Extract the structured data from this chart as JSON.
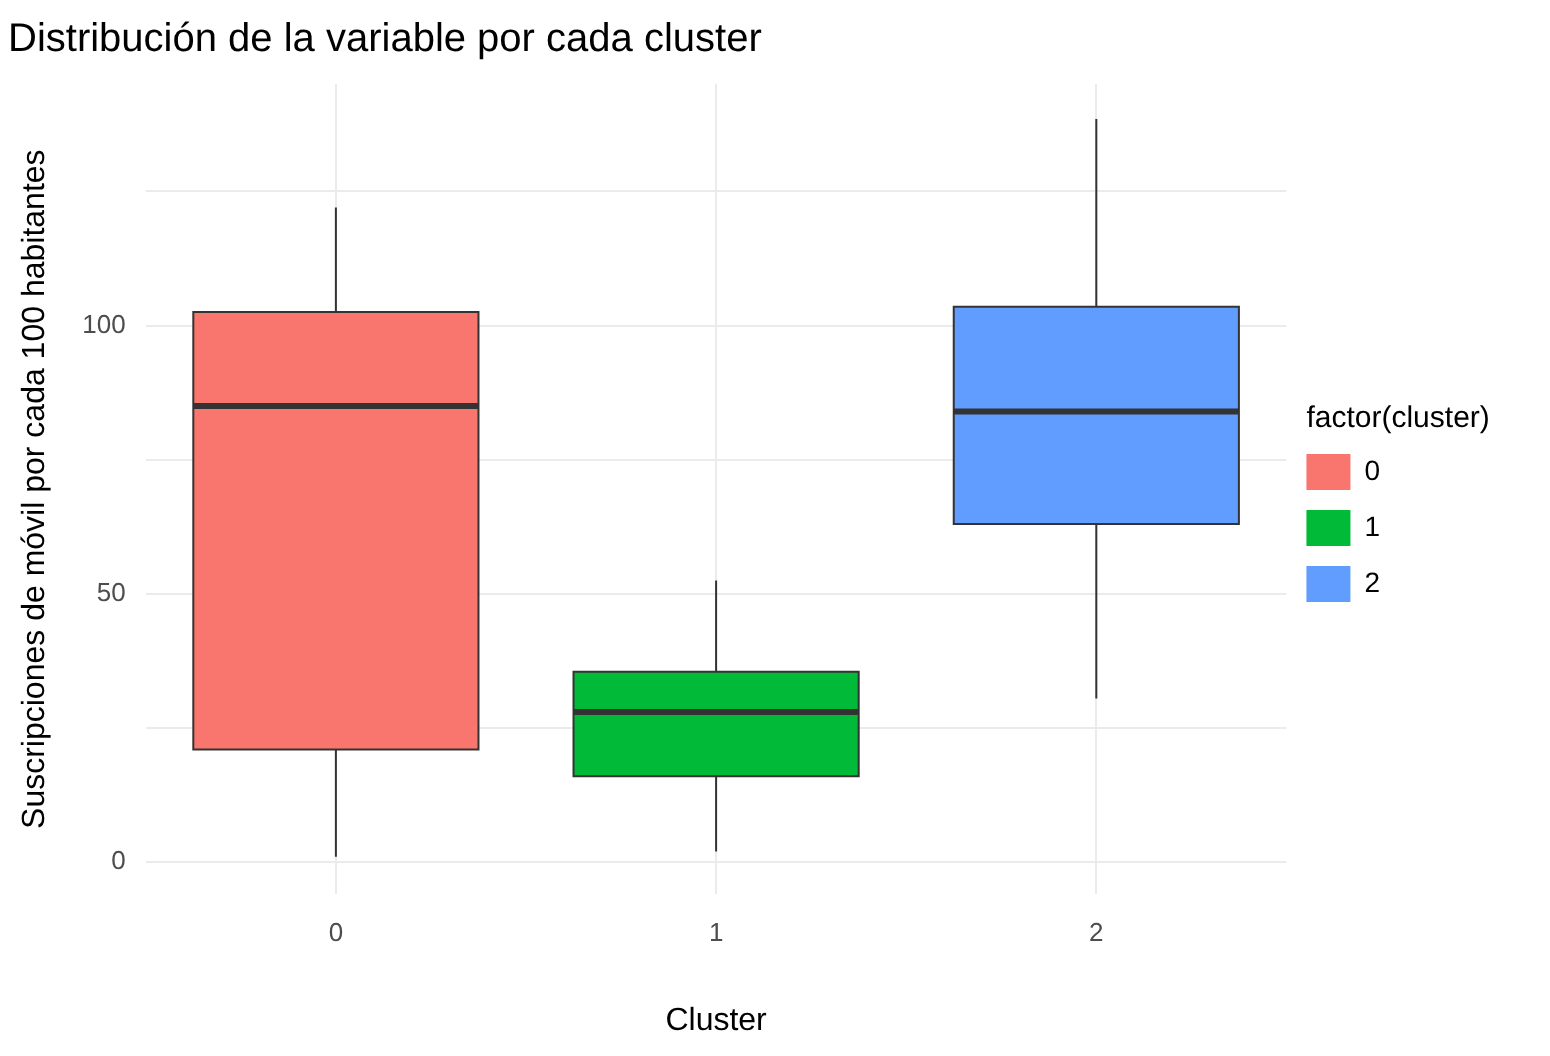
{
  "chart_data": {
    "type": "box",
    "title": "Distribución de la variable por cada cluster",
    "xlabel": "Cluster",
    "ylabel": "Suscripciones de móvil por cada 100 habitantes",
    "legend_title": "factor(cluster)",
    "legend": "right",
    "grid": true,
    "categories": [
      "0",
      "1",
      "2"
    ],
    "series": [
      {
        "name": "0",
        "color": "#f8766d",
        "boxes": [
          {
            "low": 1,
            "q1": 21,
            "median": 85,
            "q3": 102.5,
            "high": 122
          },
          null,
          null
        ]
      },
      {
        "name": "1",
        "color": "#00ba38",
        "boxes": [
          null,
          {
            "low": 2,
            "q1": 16,
            "median": 28,
            "q3": 35.5,
            "high": 52.5
          },
          null
        ]
      },
      {
        "name": "2",
        "color": "#619cff",
        "boxes": [
          null,
          null,
          {
            "low": 30.5,
            "q1": 63,
            "median": 84,
            "q3": 103.5,
            "high": 138.5
          }
        ]
      }
    ],
    "ylim": [
      -6,
      145
    ],
    "yticks": [
      0,
      {
        "value": 25,
        "label": null
      },
      50,
      {
        "value": 75,
        "label": null
      },
      100,
      {
        "value": 125,
        "label": null
      }
    ]
  }
}
